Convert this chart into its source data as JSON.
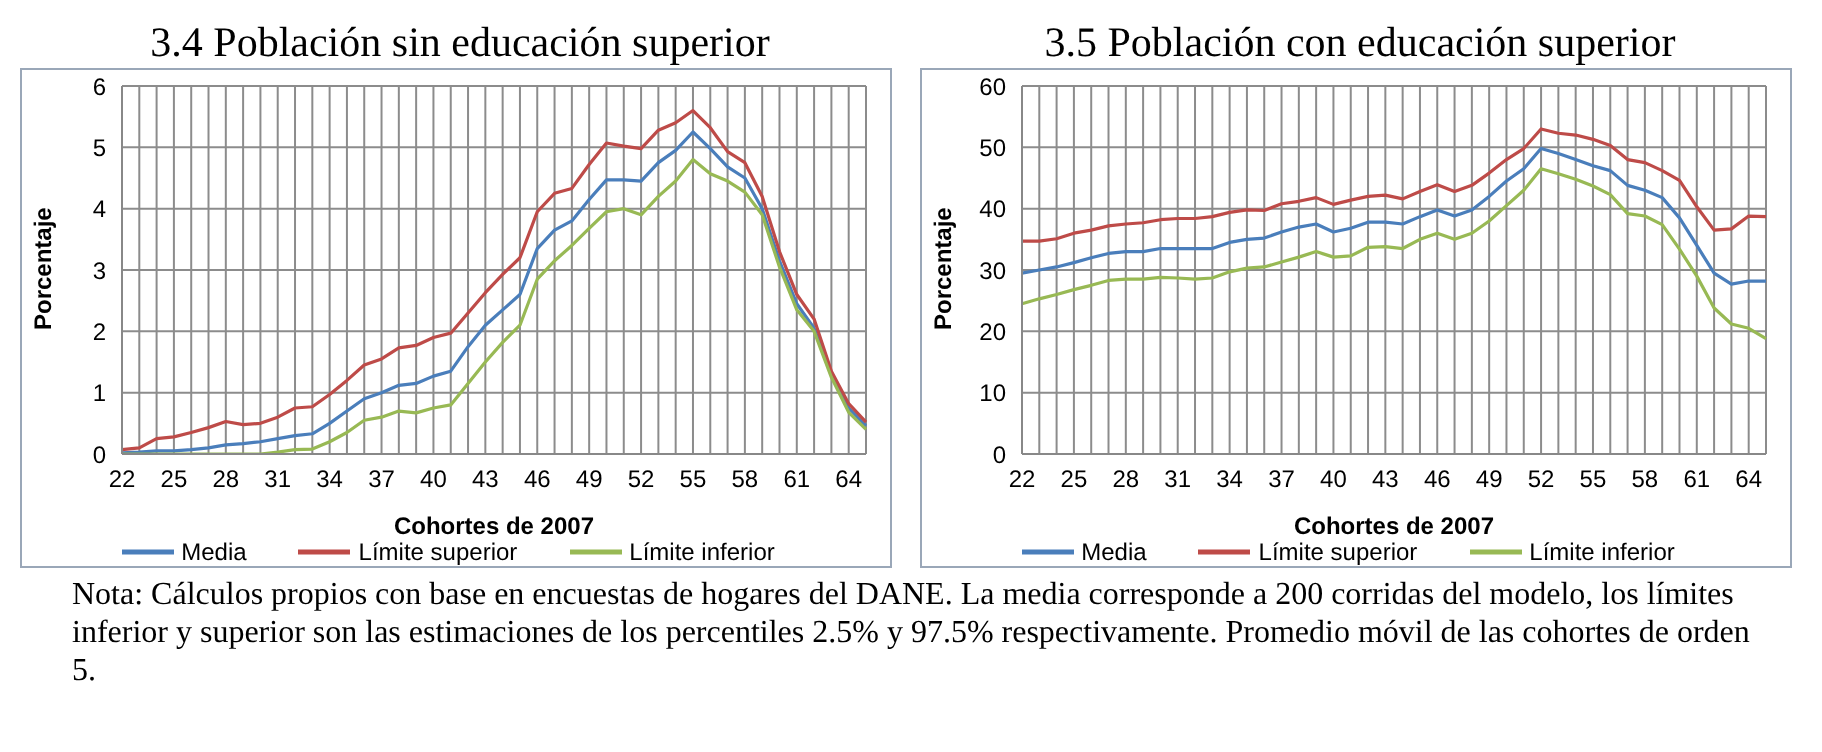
{
  "chart_data": [
    {
      "type": "line",
      "title": "3.4 Población sin educación superior",
      "xlabel": "Cohortes de 2007",
      "ylabel": "Porcentaje",
      "categories": [
        "22",
        null,
        null,
        "25",
        null,
        null,
        "28",
        null,
        null,
        "31",
        null,
        null,
        "34",
        null,
        null,
        "37",
        null,
        null,
        "40",
        null,
        null,
        "43",
        null,
        null,
        "46",
        null,
        null,
        "49",
        null,
        null,
        "52",
        null,
        null,
        "55",
        null,
        null,
        "58",
        null,
        null,
        "61",
        null,
        null,
        "64",
        null
      ],
      "ylim": [
        0,
        6
      ],
      "yticks": [
        0,
        1,
        2,
        3,
        4,
        5,
        6
      ],
      "grid": true,
      "legend": "bottom",
      "marker": "none",
      "line_style": "solid",
      "series": [
        {
          "name": "Media",
          "color": "#4a7ebb",
          "values": [
            0.02,
            0.03,
            0.05,
            0.05,
            0.07,
            0.1,
            0.15,
            0.17,
            0.2,
            0.25,
            0.3,
            0.33,
            0.5,
            0.7,
            0.9,
            1.0,
            1.12,
            1.15,
            1.27,
            1.35,
            1.75,
            2.1,
            2.35,
            2.6,
            3.35,
            3.65,
            3.8,
            4.15,
            4.47,
            4.47,
            4.45,
            4.75,
            4.95,
            5.25,
            4.98,
            4.68,
            4.5,
            4.0,
            3.15,
            2.45,
            2.05,
            1.3,
            0.75,
            0.46
          ]
        },
        {
          "name": "Límite superior",
          "color": "#be4b48",
          "values": [
            0.07,
            0.1,
            0.25,
            0.28,
            0.35,
            0.43,
            0.53,
            0.48,
            0.5,
            0.6,
            0.75,
            0.77,
            0.97,
            1.2,
            1.45,
            1.55,
            1.73,
            1.77,
            1.9,
            1.97,
            2.3,
            2.63,
            2.93,
            3.2,
            3.95,
            4.25,
            4.33,
            4.72,
            5.07,
            5.02,
            4.98,
            5.28,
            5.4,
            5.6,
            5.32,
            4.93,
            4.75,
            4.2,
            3.3,
            2.6,
            2.2,
            1.35,
            0.82,
            0.52
          ]
        },
        {
          "name": "Límite inferior",
          "color": "#98b954",
          "values": [
            0,
            0,
            0,
            0,
            0,
            0,
            0,
            0,
            0,
            0.03,
            0.07,
            0.08,
            0.2,
            0.35,
            0.55,
            0.6,
            0.7,
            0.67,
            0.75,
            0.8,
            1.15,
            1.5,
            1.82,
            2.1,
            2.85,
            3.15,
            3.4,
            3.68,
            3.95,
            4.0,
            3.9,
            4.2,
            4.45,
            4.8,
            4.57,
            4.45,
            4.27,
            3.9,
            3.05,
            2.35,
            2.0,
            1.25,
            0.68,
            0.4
          ]
        }
      ]
    },
    {
      "type": "line",
      "title": "3.5 Población con educación superior",
      "xlabel": "Cohortes de 2007",
      "ylabel": "Porcentaje",
      "categories": [
        "22",
        null,
        null,
        "25",
        null,
        null,
        "28",
        null,
        null,
        "31",
        null,
        null,
        "34",
        null,
        null,
        "37",
        null,
        null,
        "40",
        null,
        null,
        "43",
        null,
        null,
        "46",
        null,
        null,
        "49",
        null,
        null,
        "52",
        null,
        null,
        "55",
        null,
        null,
        "58",
        null,
        null,
        "61",
        null,
        null,
        "64",
        null
      ],
      "ylim": [
        0,
        60
      ],
      "yticks": [
        0,
        10,
        20,
        30,
        40,
        50,
        60
      ],
      "grid": true,
      "legend": "bottom",
      "marker": "none",
      "line_style": "solid",
      "annotations": [
        "Nota: Cálculos propios con base en encuestas de hogares del DANE. La media corresponde a 200 corridas del modelo, los límites inferior y superior son las estimaciones de los percentiles 2.5% y 97.5% respectivamente. Promedio móvil de las cohortes de orden 5."
      ],
      "series": [
        {
          "name": "Media",
          "color": "#4a7ebb",
          "values": [
            29.5,
            30,
            30.5,
            31.2,
            32,
            32.7,
            33,
            33,
            33.5,
            33.5,
            33.5,
            33.5,
            34.5,
            35,
            35.2,
            36.2,
            37,
            37.5,
            36.2,
            36.8,
            37.8,
            37.8,
            37.5,
            38.7,
            39.8,
            38.8,
            39.8,
            42,
            44.5,
            46.5,
            49.8,
            49,
            48,
            47,
            46.2,
            43.8,
            43,
            41.8,
            38.5,
            34,
            29.5,
            27.7,
            28.2,
            28.2
          ]
        },
        {
          "name": "Límite superior",
          "color": "#be4b48",
          "values": [
            34.7,
            34.7,
            35.1,
            36,
            36.5,
            37.2,
            37.5,
            37.7,
            38.2,
            38.4,
            38.4,
            38.7,
            39.4,
            39.8,
            39.7,
            40.8,
            41.2,
            41.8,
            40.7,
            41.4,
            42,
            42.2,
            41.6,
            42.8,
            43.9,
            42.8,
            43.8,
            45.8,
            48,
            49.8,
            53,
            52.3,
            52,
            51.3,
            50.3,
            48,
            47.5,
            46.2,
            44.6,
            40.3,
            36.5,
            36.7,
            38.8,
            38.7
          ]
        },
        {
          "name": "Límite inferior",
          "color": "#98b954",
          "values": [
            24.5,
            25.3,
            26,
            26.8,
            27.5,
            28.3,
            28.5,
            28.5,
            28.8,
            28.7,
            28.5,
            28.7,
            29.7,
            30.3,
            30.5,
            31.3,
            32.1,
            33,
            32.1,
            32.3,
            33.7,
            33.8,
            33.5,
            35,
            36,
            35,
            36,
            38,
            40.5,
            43,
            46.5,
            45.7,
            44.8,
            43.7,
            42.3,
            39.2,
            38.8,
            37.4,
            33.4,
            29,
            23.8,
            21.2,
            20.5,
            18.8
          ]
        }
      ]
    }
  ]
}
